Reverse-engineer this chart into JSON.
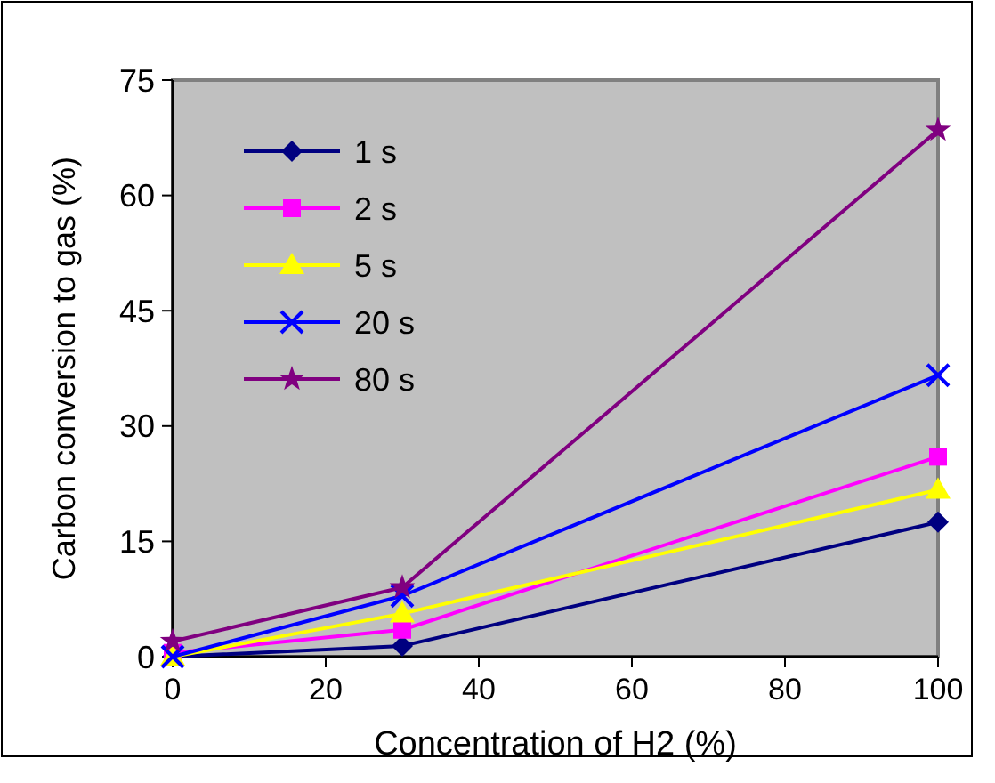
{
  "chart_data": {
    "type": "line",
    "xlabel": "Concentration of H2 (%)",
    "ylabel": "Carbon conversion to gas (%)",
    "x": [
      0,
      30,
      100
    ],
    "xlim": [
      0,
      100
    ],
    "xticks": [
      0,
      20,
      40,
      60,
      80,
      100
    ],
    "ylim": [
      0,
      75
    ],
    "yticks": [
      0,
      15,
      30,
      45,
      60,
      75
    ],
    "grid": false,
    "legend": "top left",
    "series": [
      {
        "name": "1 s",
        "color": "#000080",
        "marker": "diamond",
        "values": [
          0,
          1.4,
          17.5
        ]
      },
      {
        "name": "2 s",
        "color": "#ff00ff",
        "marker": "square",
        "values": [
          0.5,
          3.5,
          26
        ]
      },
      {
        "name": "5 s",
        "color": "#ffff00",
        "marker": "triangle",
        "values": [
          0,
          5.6,
          21.7
        ]
      },
      {
        "name": "20 s",
        "color": "#0000ff",
        "marker": "cross",
        "values": [
          0,
          7.9,
          36.6
        ]
      },
      {
        "name": "80 s",
        "color": "#800080",
        "marker": "star",
        "values": [
          2,
          9,
          68.5
        ]
      }
    ]
  }
}
